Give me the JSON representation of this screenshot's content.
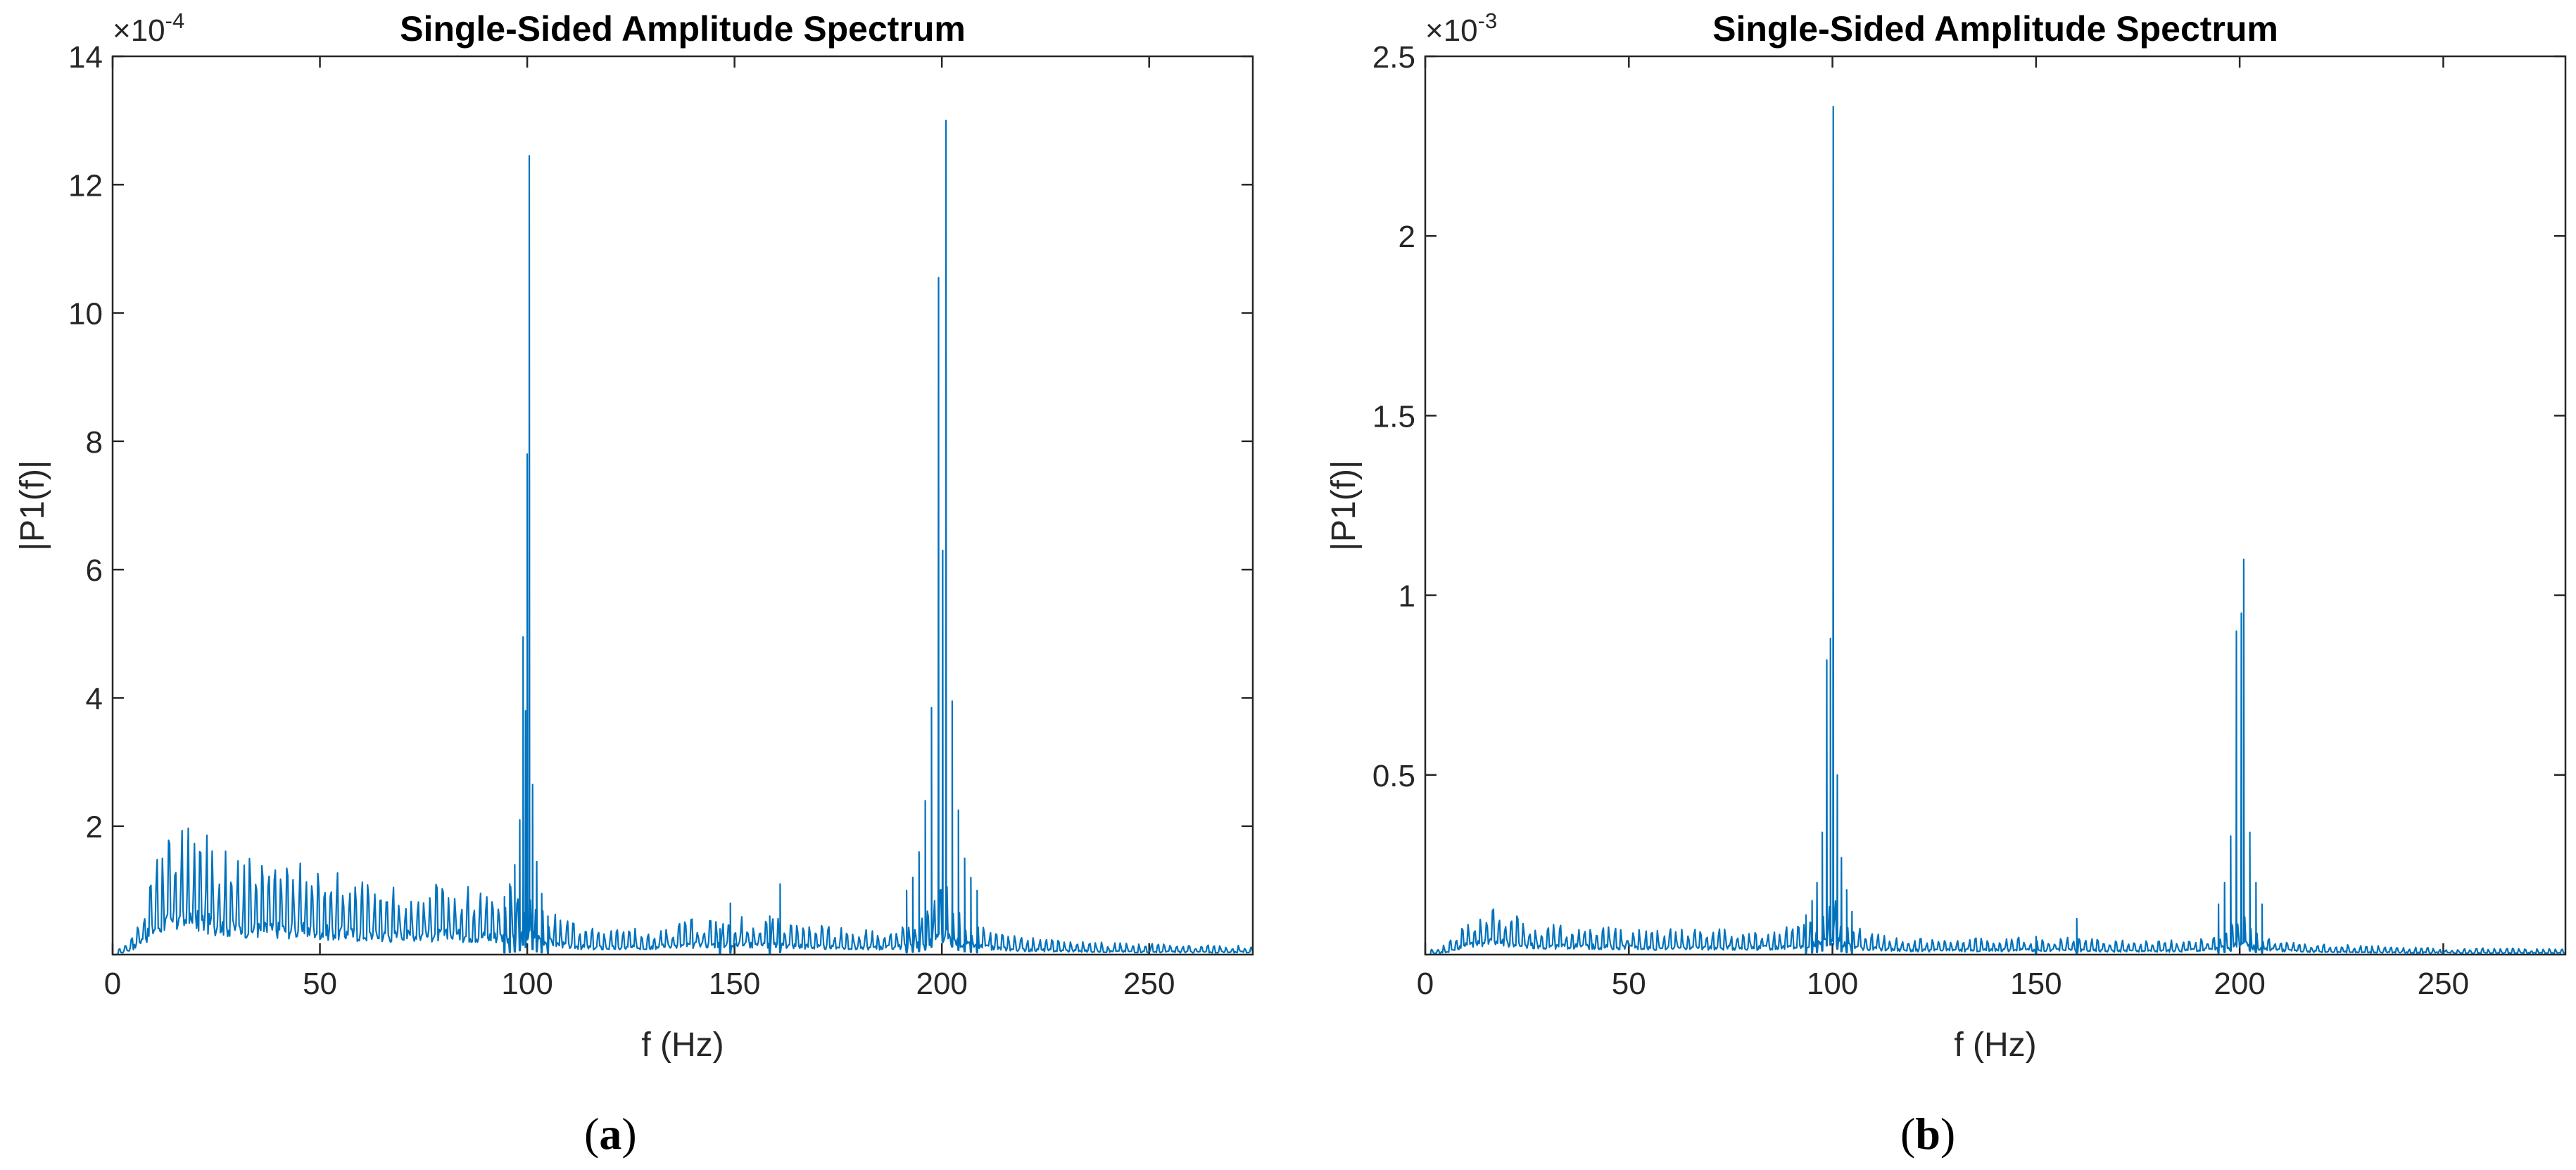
{
  "chart_data": [
    {
      "type": "line",
      "id": "a",
      "caption_letter": "a",
      "caption_open": "(",
      "caption_close": ")",
      "title": "Single-Sided Amplitude Spectrum",
      "xlabel": "f (Hz)",
      "ylabel": "|P1(f)|",
      "multiplier_base": "×10",
      "multiplier_exponent": "-4",
      "xlim": [
        0,
        275
      ],
      "ylim": [
        0,
        14
      ],
      "xticks": [
        0,
        50,
        100,
        150,
        200,
        250
      ],
      "xtick_labels": [
        "0",
        "50",
        "100",
        "150",
        "200",
        "250"
      ],
      "yticks": [
        2,
        4,
        6,
        8,
        10,
        12,
        14
      ],
      "ytick_labels": [
        "2",
        "4",
        "6",
        "8",
        "10",
        "12",
        "14"
      ],
      "line_color": "#0072BD",
      "envelope_bumps": [
        {
          "f": 15,
          "amp": 1.2,
          "width": 12
        },
        {
          "f": 35,
          "amp": 0.9,
          "width": 22
        },
        {
          "f": 60,
          "amp": 0.55,
          "width": 25
        },
        {
          "f": 85,
          "amp": 0.5,
          "width": 18
        },
        {
          "f": 150,
          "amp": 0.35,
          "width": 25
        }
      ],
      "peaks": [
        {
          "f": 100.5,
          "amp": 12.45
        },
        {
          "f": 100.0,
          "amp": 7.8
        },
        {
          "f": 99.0,
          "amp": 4.95
        },
        {
          "f": 99.6,
          "amp": 3.8
        },
        {
          "f": 98.2,
          "amp": 2.1
        },
        {
          "f": 101.3,
          "amp": 2.65
        },
        {
          "f": 102.3,
          "amp": 1.45
        },
        {
          "f": 97.0,
          "amp": 1.4
        },
        {
          "f": 103.5,
          "amp": 0.95
        },
        {
          "f": 95.8,
          "amp": 1.1
        },
        {
          "f": 94.5,
          "amp": 0.9
        },
        {
          "f": 105.0,
          "amp": 0.6
        },
        {
          "f": 201.0,
          "amp": 13.0
        },
        {
          "f": 199.2,
          "amp": 10.55
        },
        {
          "f": 200.2,
          "amp": 6.3
        },
        {
          "f": 197.5,
          "amp": 3.85
        },
        {
          "f": 202.5,
          "amp": 3.95
        },
        {
          "f": 196.0,
          "amp": 2.4
        },
        {
          "f": 204.0,
          "amp": 2.25
        },
        {
          "f": 194.5,
          "amp": 1.6
        },
        {
          "f": 205.5,
          "amp": 1.5
        },
        {
          "f": 193.0,
          "amp": 1.2
        },
        {
          "f": 207.0,
          "amp": 1.2
        },
        {
          "f": 191.5,
          "amp": 1.0
        },
        {
          "f": 208.5,
          "amp": 1.0
        },
        {
          "f": 161.0,
          "amp": 1.1
        },
        {
          "f": 149.0,
          "amp": 0.8
        },
        {
          "f": 158.5,
          "amp": 0.6
        },
        {
          "f": 146.5,
          "amp": 0.4
        }
      ],
      "comb_spacing": 1.5,
      "right_tail_amp": 0.1
    },
    {
      "type": "line",
      "id": "b",
      "caption_letter": "b",
      "caption_open": "(",
      "caption_close": ")",
      "title": "Single-Sided Amplitude Spectrum",
      "xlabel": "f (Hz)",
      "ylabel": "|P1(f)|",
      "multiplier_base": "×10",
      "multiplier_exponent": "-3",
      "xlim": [
        0,
        280
      ],
      "ylim": [
        0,
        2.5
      ],
      "xticks": [
        0,
        50,
        100,
        150,
        200,
        250
      ],
      "xtick_labels": [
        "0",
        "50",
        "100",
        "150",
        "200",
        "250"
      ],
      "yticks": [
        0.5,
        1,
        1.5,
        2,
        2.5
      ],
      "ytick_labels": [
        "0.5",
        "1",
        "1.5",
        "2",
        "2.5"
      ],
      "line_color": "#0072BD",
      "envelope_bumps": [
        {
          "f": 15,
          "amp": 0.08,
          "width": 10
        },
        {
          "f": 35,
          "amp": 0.05,
          "width": 20
        },
        {
          "f": 70,
          "amp": 0.035,
          "width": 25
        },
        {
          "f": 150,
          "amp": 0.02,
          "width": 25
        }
      ],
      "peaks": [
        {
          "f": 100.2,
          "amp": 2.36
        },
        {
          "f": 99.5,
          "amp": 0.88
        },
        {
          "f": 98.6,
          "amp": 0.82
        },
        {
          "f": 101.2,
          "amp": 0.5
        },
        {
          "f": 97.5,
          "amp": 0.34
        },
        {
          "f": 102.2,
          "amp": 0.27
        },
        {
          "f": 96.2,
          "amp": 0.2
        },
        {
          "f": 103.5,
          "amp": 0.18
        },
        {
          "f": 95.0,
          "amp": 0.15
        },
        {
          "f": 104.8,
          "amp": 0.12
        },
        {
          "f": 93.5,
          "amp": 0.11
        },
        {
          "f": 201.0,
          "amp": 1.1
        },
        {
          "f": 200.4,
          "amp": 0.95
        },
        {
          "f": 199.2,
          "amp": 0.9
        },
        {
          "f": 197.8,
          "amp": 0.33
        },
        {
          "f": 202.5,
          "amp": 0.34
        },
        {
          "f": 196.3,
          "amp": 0.2
        },
        {
          "f": 204.0,
          "amp": 0.2
        },
        {
          "f": 194.8,
          "amp": 0.14
        },
        {
          "f": 205.5,
          "amp": 0.14
        },
        {
          "f": 160.0,
          "amp": 0.1
        },
        {
          "f": 150.0,
          "amp": 0.05
        }
      ],
      "comb_spacing": 1.5,
      "right_tail_amp": 0.012
    }
  ]
}
